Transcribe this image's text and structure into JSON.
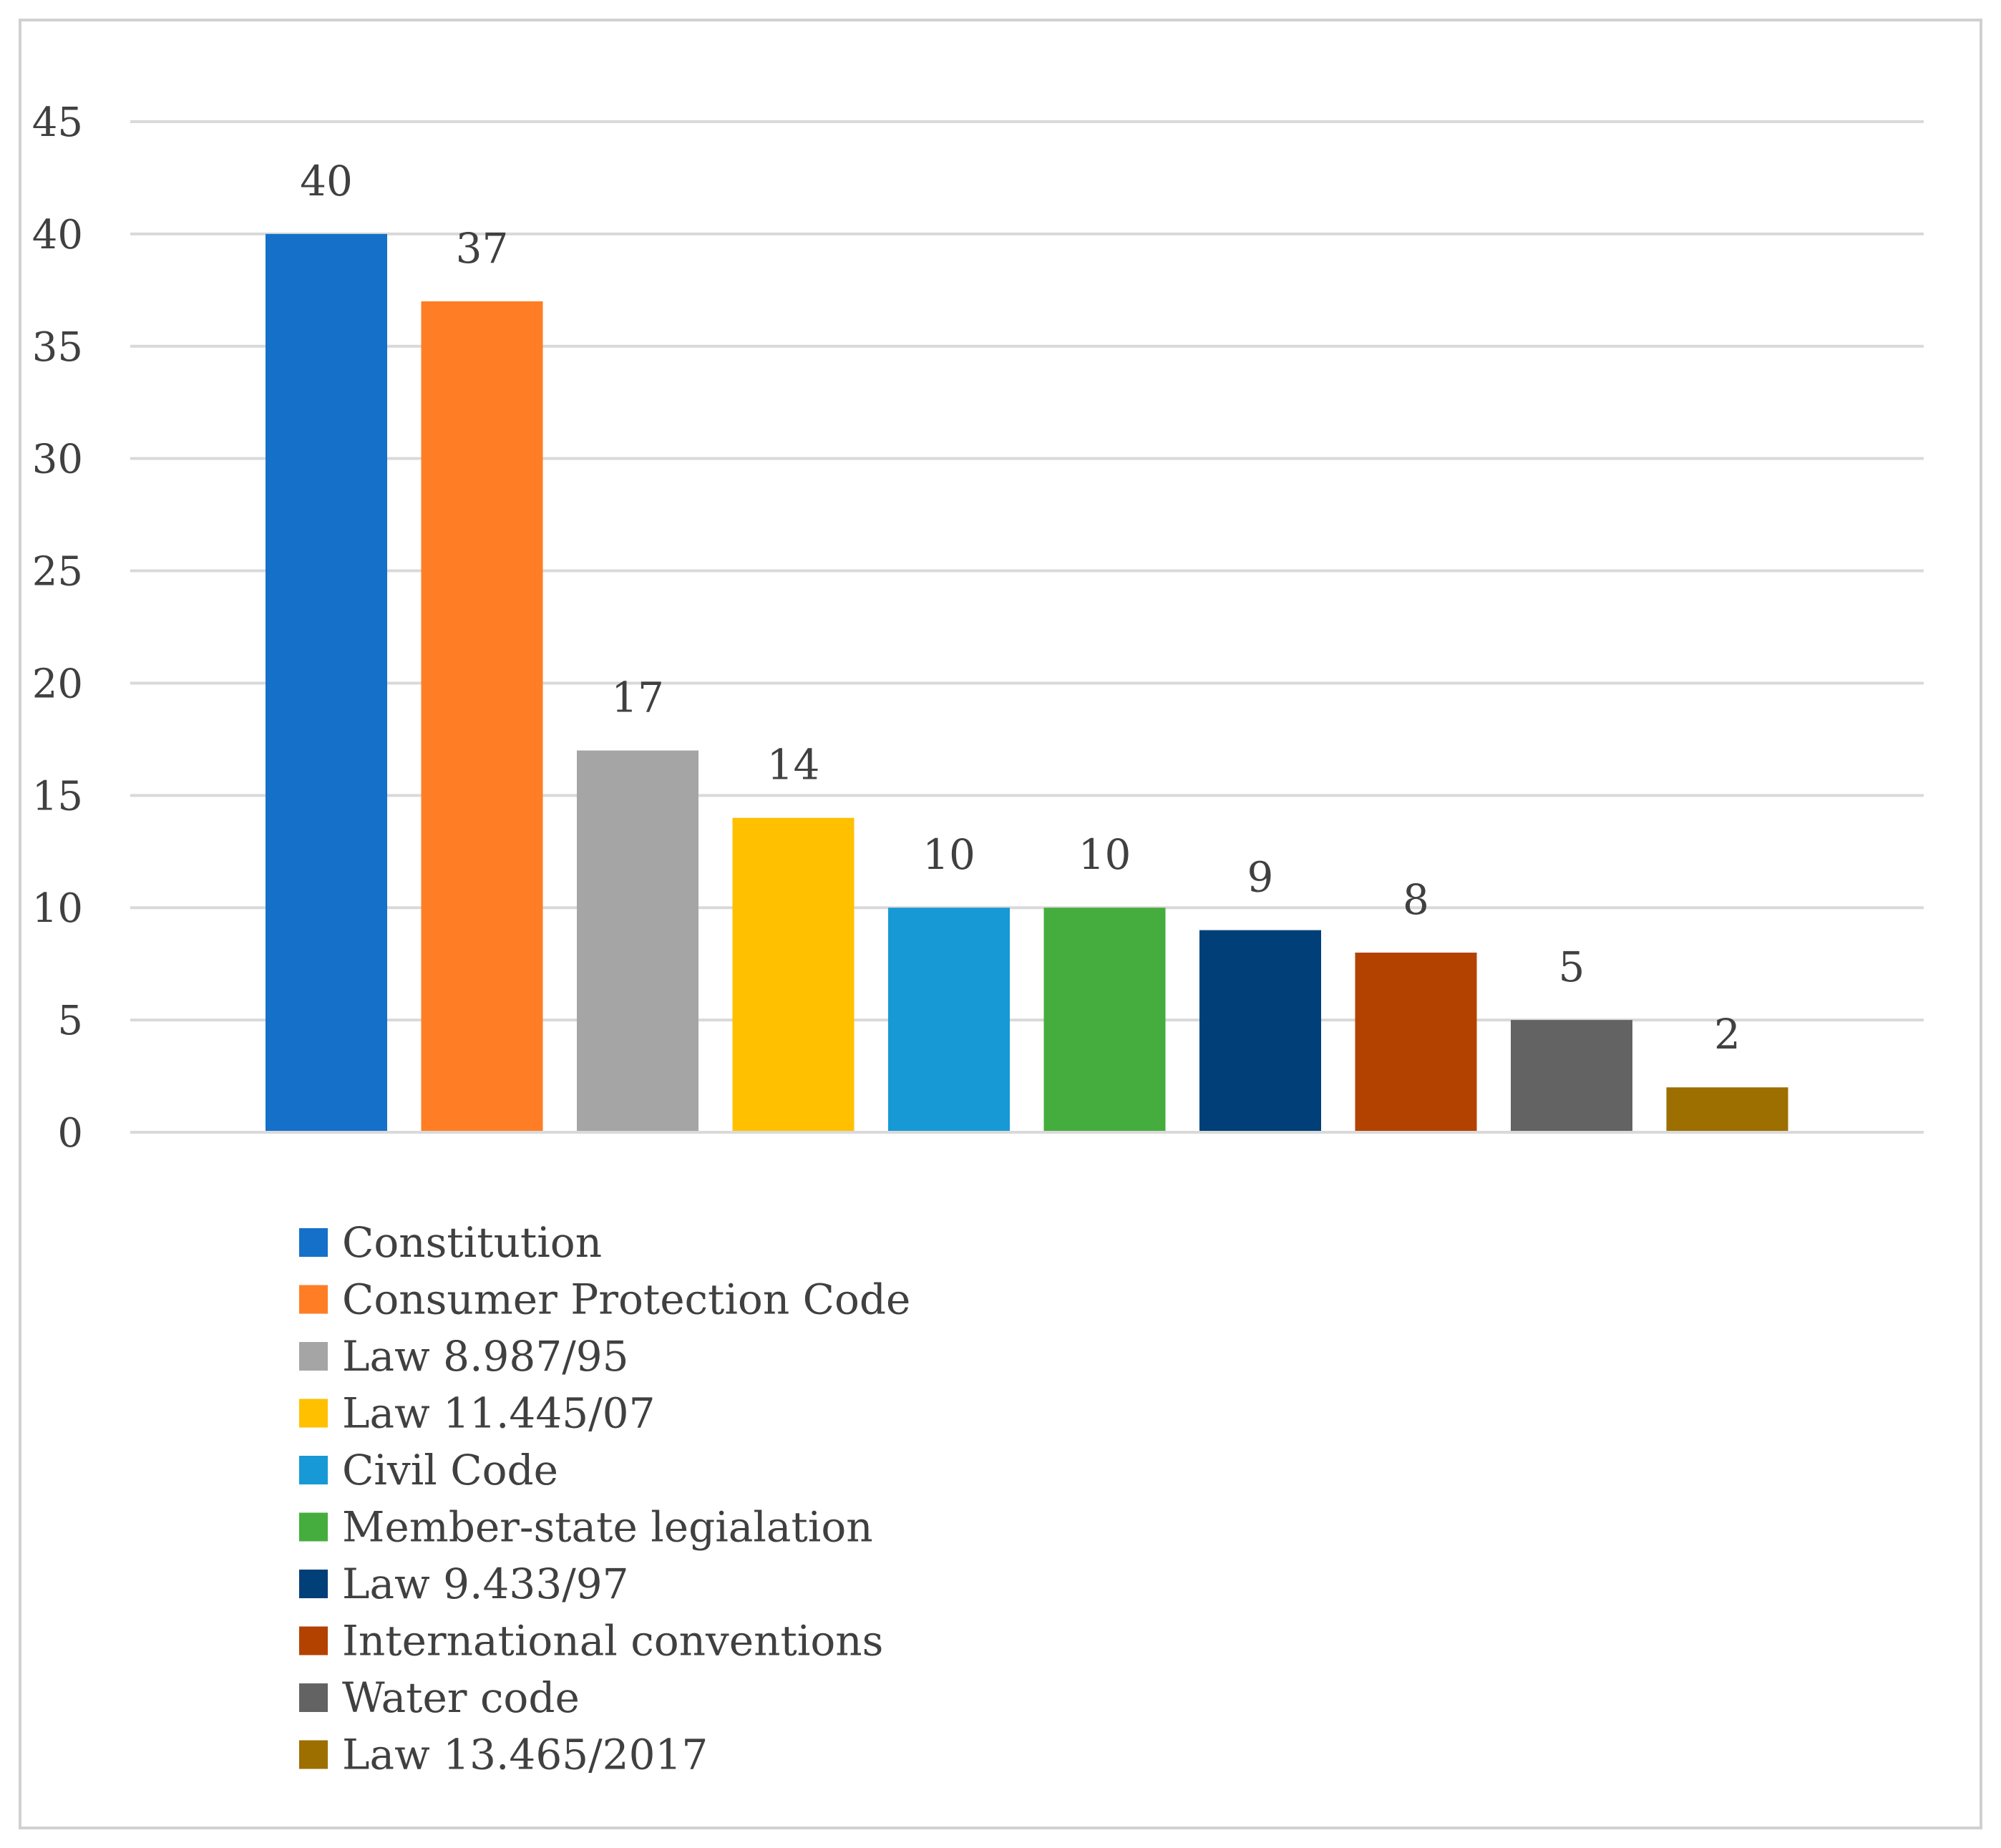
{
  "chart_data": {
    "type": "bar",
    "title": "",
    "xlabel": "",
    "ylabel": "",
    "ylim": [
      0,
      45
    ],
    "yticks": [
      0,
      5,
      10,
      15,
      20,
      25,
      30,
      35,
      40,
      45
    ],
    "grid": true,
    "legend_position": "bottom-left",
    "categories": [
      "Constitution",
      "Consumer Protection Code",
      "Law 8.987/95",
      "Law 11.445/07",
      "Civil Code",
      "Member-state legialation",
      "Law 9.433/97",
      "International conventions",
      "Water code",
      "Law 13.465/2017"
    ],
    "values": [
      40,
      37,
      17,
      14,
      10,
      10,
      9,
      8,
      5,
      2
    ],
    "colors": [
      "#1570C9",
      "#FF7E25",
      "#A5A5A5",
      "#FFC000",
      "#1799D6",
      "#45AD3D",
      "#003F78",
      "#B34200",
      "#636363",
      "#9C6F00"
    ],
    "gridline_color": "#D9D9D9",
    "frame_color": "#D0D0D0"
  }
}
